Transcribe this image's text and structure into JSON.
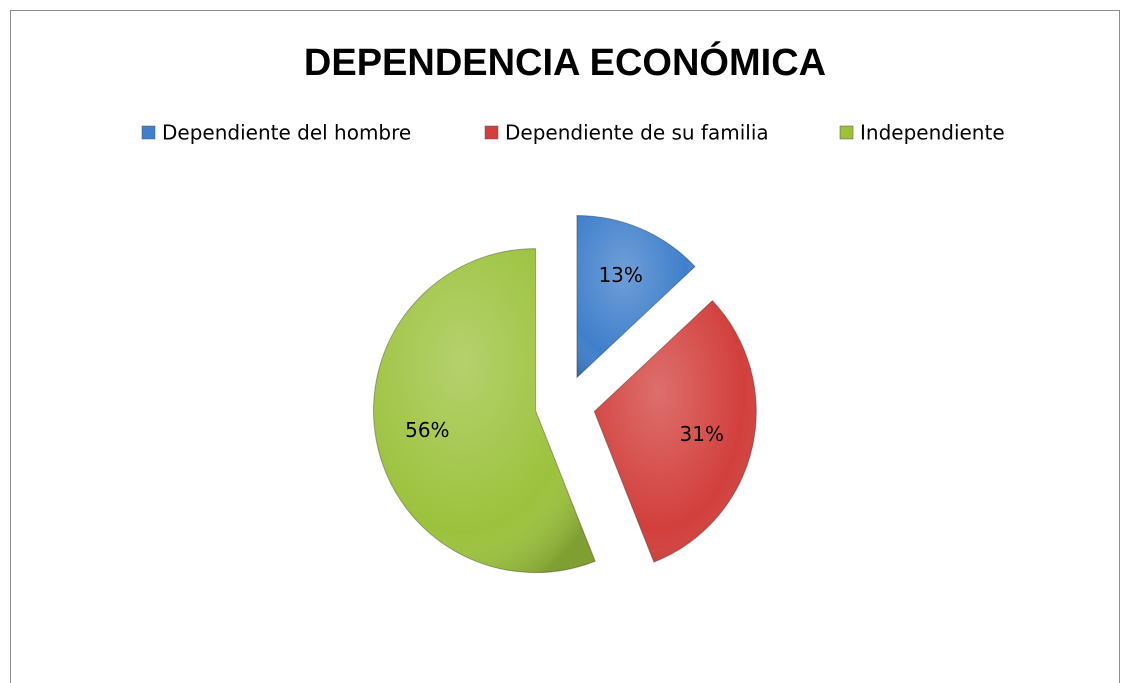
{
  "chart_data": {
    "type": "pie",
    "title": "DEPENDENCIA ECONÓMICA",
    "categories": [
      "Dependiente del hombre",
      "Dependiente de su familia",
      "Independiente"
    ],
    "values": [
      13,
      31,
      56
    ],
    "value_labels": [
      "13%",
      "31%",
      "56%"
    ],
    "colors": [
      "#3f7fcb",
      "#d23f3c",
      "#9cc23d"
    ],
    "legend": "top",
    "exploded": true
  }
}
